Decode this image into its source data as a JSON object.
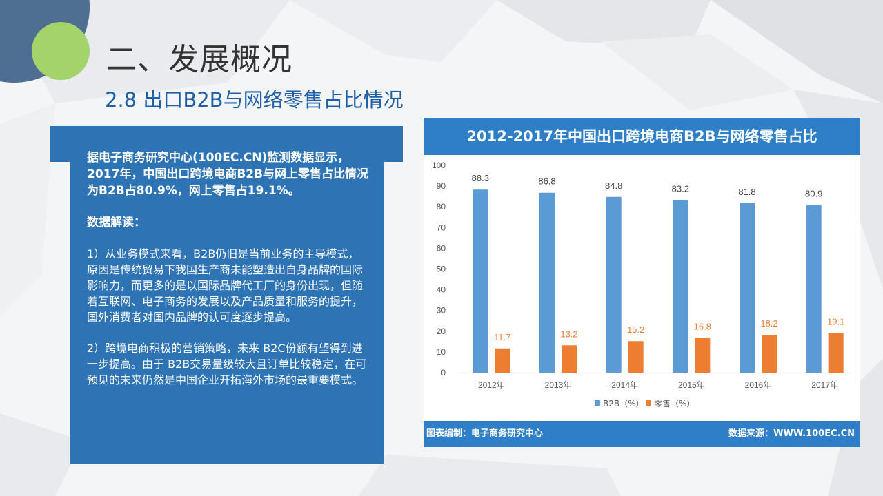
{
  "slide": {
    "title": "二、发展概况",
    "subtitle": "2.8 出口B2B与网络零售占比情况"
  },
  "panel": {
    "intro": "据电子商务研究中心(100EC.CN)监测数据显示，2017年，中国出口跨境电商B2B与网上零售占比情况为B2B占80.9%，网上零售占19.1%。",
    "heading": "数据解读：",
    "point1": "1）从业务模式来看，B2B仍旧是当前业务的主导模式，原因是传统贸易下我国生产商未能塑造出自身品牌的国际影响力，而更多的是以国际品牌代工厂的身份出现，但随着互联网、电子商务的发展以及产品质量和服务的提升，国外消费者对国内品牌的认可度逐步提高。",
    "point2": "2）跨境电商积极的营销策略，未来 B2C份额有望得到进一步提高。由于 B2B交易量级较大且订单比较稳定，在可预见的未来仍然是中国企业开拓海外市场的最重要模式。"
  },
  "colors": {
    "b2b": "#5b9bd5",
    "retail": "#ed7d31",
    "header": "#2e7fc7",
    "panel": "#2e74b5"
  },
  "chart_data": {
    "type": "bar",
    "title": "2012-2017年中国出口跨境电商B2B与网络零售占比",
    "categories": [
      "2012年",
      "2013年",
      "2014年",
      "2015年",
      "2016年",
      "2017年"
    ],
    "series": [
      {
        "name": "B2B（%）",
        "values": [
          88.3,
          86.8,
          84.8,
          83.2,
          81.8,
          80.9
        ]
      },
      {
        "name": "零售（%）",
        "values": [
          11.7,
          13.2,
          15.2,
          16.8,
          18.2,
          19.1
        ]
      }
    ],
    "ylim": [
      0,
      100
    ],
    "yticks": [
      0,
      10,
      20,
      30,
      40,
      50,
      60,
      70,
      80,
      90,
      100
    ],
    "legend": "bottom",
    "grid": false
  },
  "footer": {
    "left": "图表编制：电子商务研究中心",
    "right": "数据来源：WWW.100EC.CN"
  }
}
